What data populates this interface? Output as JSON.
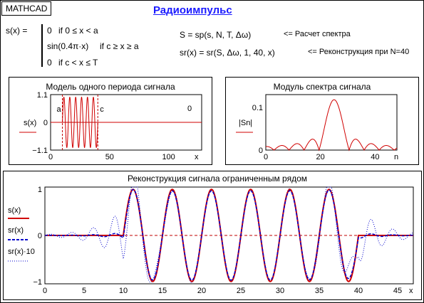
{
  "app_label": "MATHCAD",
  "title": "Радиоимпульс",
  "definition": {
    "lhs": "s(x) =",
    "cases": [
      {
        "expr": "0",
        "cond": "if   0 ≤ x < a"
      },
      {
        "expr": "sin(0.4π·x)",
        "cond": "if   c ≥ x ≥ a"
      },
      {
        "expr": "0",
        "cond": "if   c < x ≤ T"
      }
    ]
  },
  "formulas": [
    {
      "text": "S = sp(s, N, T, Δω)",
      "note": "<= Расчет спектра"
    },
    {
      "text": "sr(x) = sr(S, Δω, 1, 40, x)",
      "note": "<= Реконструкция при N=40"
    }
  ],
  "colors": {
    "signal": "#d00000",
    "recon": "#0000cc",
    "dotted": "#0000cc",
    "grid": "#c00000",
    "title": "#1a1aff"
  },
  "chart_data": [
    {
      "type": "line",
      "title": "Модель одного периода сигнала",
      "ylabel": "s(x)",
      "xlabel": "x",
      "xlim": [
        0,
        128
      ],
      "ylim": [
        -1.1,
        1.1
      ],
      "xticks": [
        "0",
        "50",
        "100"
      ],
      "yticks": [
        "1.1",
        "0",
        "−1.1"
      ],
      "annotations": [
        "a",
        "c",
        "0"
      ],
      "series": [
        {
          "name": "s(x)",
          "function": "sin(0.4πx) for 10 ≤ x ≤ 40, else 0"
        }
      ]
    },
    {
      "type": "line",
      "title": "Модуль спектра сигнала",
      "ylabel": "|Sn|",
      "xlabel": "n",
      "xlim": [
        0,
        48
      ],
      "ylim": [
        0,
        0.13
      ],
      "xticks": [
        "0",
        "20",
        "40"
      ],
      "yticks": [
        "0.1",
        "0"
      ],
      "series": [
        {
          "name": "|Sn|",
          "peak_n": 25,
          "peak_value": 0.118
        }
      ]
    },
    {
      "type": "line",
      "title": "Реконструкция сигнала ограниченным рядом",
      "xlabel": "x",
      "xlim": [
        0,
        47
      ],
      "ylim": [
        -1,
        1
      ],
      "xticks": [
        "0",
        "5",
        "10",
        "15",
        "20",
        "25",
        "30",
        "35",
        "40",
        "45"
      ],
      "yticks": [
        "1",
        "0",
        "−1"
      ],
      "legend": [
        "s(x)",
        "sr(x)",
        "sr(x)·10"
      ],
      "series": [
        {
          "name": "s(x)",
          "function": "sin(0.4πx) for 10 ≤ x ≤ 40, else 0"
        },
        {
          "name": "sr(x)",
          "function": "reconstruction with N = 40 harmonics"
        },
        {
          "name": "sr(x)·10",
          "function": "reconstruction ×10 (dotted)"
        }
      ]
    }
  ]
}
